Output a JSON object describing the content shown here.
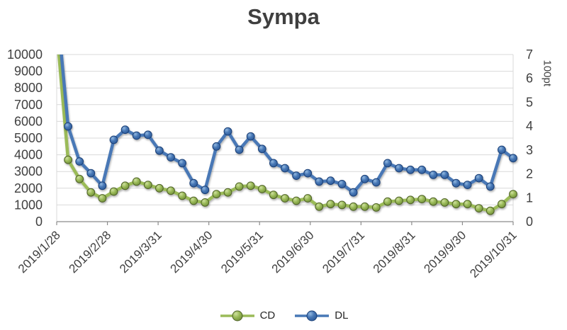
{
  "chart_data": {
    "type": "line",
    "title": "Sympa",
    "legend_position": "bottom",
    "grid": "horizontal",
    "background_color": "#FFFFFF",
    "grid_color": "#D9D9D9",
    "axis_line_color": "#8C8C8C",
    "text_color": "#404040",
    "x_axis": {
      "tick_labels": [
        "2019/1/28",
        "2019/2/28",
        "2019/3/31",
        "2019/4/30",
        "2019/5/31",
        "2019/6/30",
        "2019/7/31",
        "2019/8/31",
        "2019/9/30",
        "2019/10/31"
      ],
      "label_rotation_deg": 45,
      "points_per_series": 41
    },
    "y_axis_left": {
      "min": 0,
      "max": 10000,
      "step": 1000,
      "tick_labels": [
        "0",
        "1000",
        "2000",
        "3000",
        "4000",
        "5000",
        "6000",
        "7000",
        "8000",
        "9000",
        "10000"
      ]
    },
    "y_axis_right": {
      "min": 0,
      "max": 7,
      "step": 1,
      "title": "100pt",
      "tick_labels": [
        "0",
        "1",
        "2",
        "3",
        "4",
        "5",
        "6",
        "7"
      ]
    },
    "first_point_clipped_above_max": true,
    "series": [
      {
        "name": "CD",
        "color": "#9BBB59",
        "color_light": "#CFE0A0",
        "color_dark": "#6C8A37",
        "edge_color": "#4F6228",
        "values": [
          11500,
          3700,
          2550,
          1750,
          1400,
          1800,
          2150,
          2400,
          2200,
          2000,
          1850,
          1550,
          1250,
          1150,
          1650,
          1750,
          2100,
          2150,
          1950,
          1600,
          1400,
          1250,
          1400,
          900,
          1050,
          1000,
          900,
          900,
          850,
          1200,
          1250,
          1300,
          1350,
          1200,
          1150,
          1050,
          1050,
          800,
          650,
          1050,
          1650
        ]
      },
      {
        "name": "DL",
        "color": "#4878B6",
        "color_light": "#93B9E0",
        "color_dark": "#2A5795",
        "edge_color": "#1B4077",
        "values": [
          13000,
          5700,
          3600,
          2900,
          2150,
          4900,
          5500,
          5150,
          5200,
          4250,
          3850,
          3500,
          2300,
          1900,
          4500,
          5400,
          4300,
          5100,
          4350,
          3500,
          3200,
          2750,
          2900,
          2400,
          2450,
          2250,
          1750,
          2550,
          2350,
          3500,
          3200,
          3100,
          3100,
          2800,
          2800,
          2300,
          2200,
          2600,
          2100,
          4300,
          3800
        ]
      }
    ]
  },
  "legend": {
    "items": [
      "CD",
      "DL"
    ]
  }
}
